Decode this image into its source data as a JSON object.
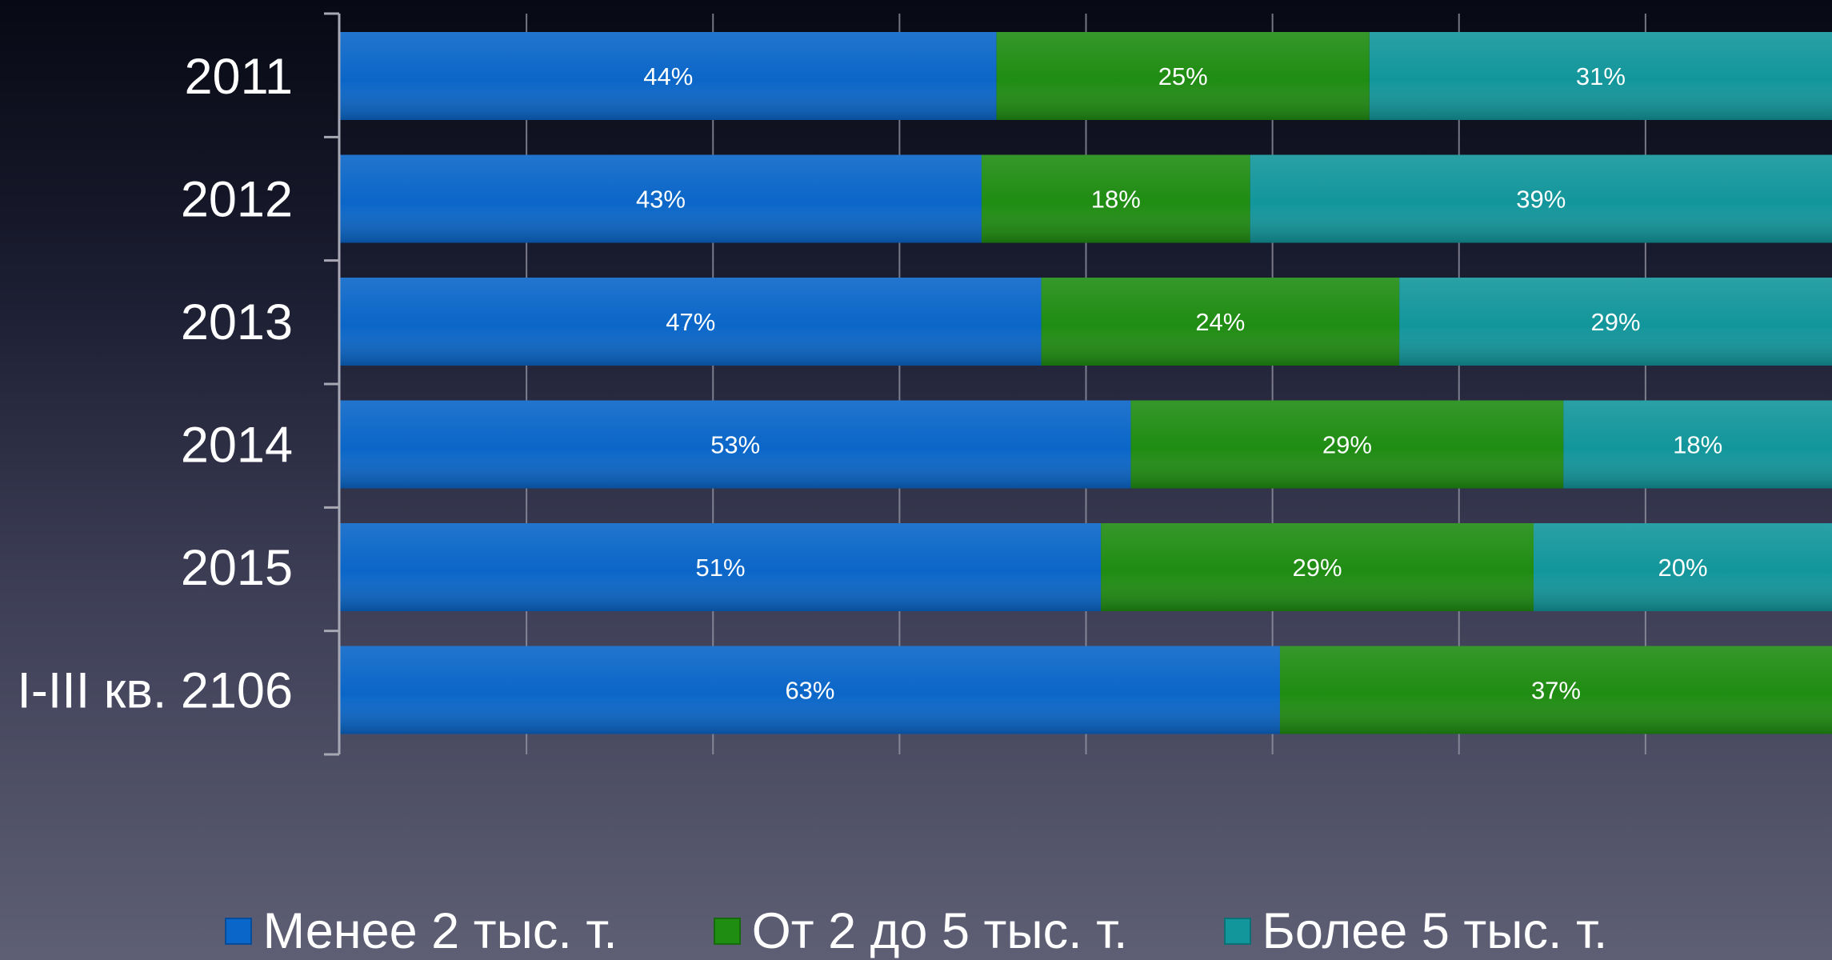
{
  "chart_data": {
    "type": "bar",
    "orientation": "horizontal",
    "stacked": true,
    "categories": [
      "2011",
      "2012",
      "2013",
      "2014",
      "2015",
      "I-III кв. 2106"
    ],
    "series": [
      {
        "name": "Менее 2 тыс. т.",
        "values": [
          44,
          43,
          47,
          53,
          51,
          63
        ],
        "labels": [
          "44%",
          "43%",
          "47%",
          "53%",
          "51%",
          "63%"
        ],
        "color": "#0a66c8"
      },
      {
        "name": "От 2 до 5 тыс. т.",
        "values": [
          25,
          18,
          24,
          29,
          29,
          37
        ],
        "labels": [
          "25%",
          "18%",
          "24%",
          "29%",
          "29%",
          "37%"
        ],
        "color": "#1f8c12"
      },
      {
        "name": "Более 5 тыс. т.",
        "values": [
          31,
          39,
          29,
          18,
          20,
          0
        ],
        "labels": [
          "31%",
          "39%",
          "29%",
          "18%",
          "20%",
          ""
        ],
        "color": "#12969b"
      }
    ],
    "xlim": [
      0,
      100
    ],
    "grid": true,
    "legend_position": "bottom"
  },
  "legend": {
    "items": [
      {
        "label": "Менее 2 тыс. т.",
        "color": "#0a66c8"
      },
      {
        "label": "От 2 до 5 тыс. т.",
        "color": "#1f8c12"
      },
      {
        "label": "Более 5 тыс. т.",
        "color": "#12969b"
      }
    ]
  }
}
